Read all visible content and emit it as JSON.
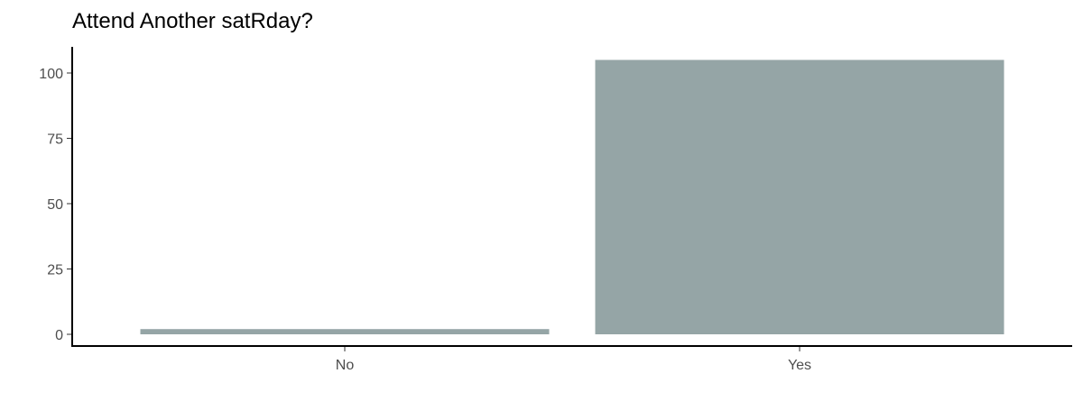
{
  "chart_data": {
    "type": "bar",
    "title": "Attend Another satRday?",
    "xlabel": "",
    "ylabel": "",
    "categories": [
      "No",
      "Yes"
    ],
    "values": [
      2,
      105
    ],
    "ylim": [
      0,
      110
    ],
    "yticks": [
      0,
      25,
      50,
      75,
      100
    ],
    "grid": false,
    "legend": "none",
    "bar_color": "#95a5a6"
  }
}
